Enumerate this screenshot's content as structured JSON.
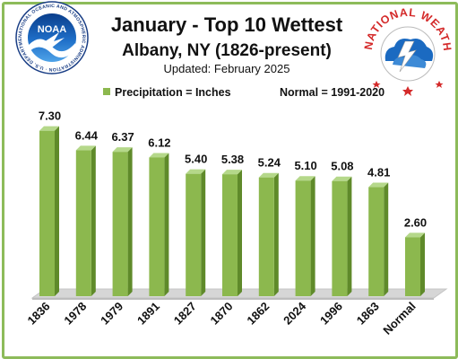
{
  "chart_data": {
    "type": "bar",
    "title": "January - Top 10 Wettest",
    "subtitle": "Albany, NY (1826-present)",
    "updated": "Updated: February 2025",
    "legend": {
      "placement": "top-left",
      "series_label": "Precipitation = Inches",
      "note": "Normal = 1991-2020"
    },
    "categories": [
      "1836",
      "1978",
      "1979",
      "1891",
      "1827",
      "1870",
      "1862",
      "2024",
      "1996",
      "1863",
      "Normal"
    ],
    "values": [
      7.3,
      6.44,
      6.37,
      6.12,
      5.4,
      5.38,
      5.24,
      5.1,
      5.08,
      4.81,
      2.6
    ],
    "value_labels": [
      "7.30",
      "6.44",
      "6.37",
      "6.12",
      "5.40",
      "5.38",
      "5.24",
      "5.10",
      "5.08",
      "4.81",
      "2.60"
    ],
    "ylim": [
      0,
      8
    ],
    "grid": false,
    "colors": {
      "bar": "#8cb84e",
      "bar_side": "#5f8a2a",
      "bar_top": "#b5d88a",
      "floor": "#d6d6d6",
      "border": "#8dbb5a"
    }
  },
  "logos": {
    "noaa": {
      "center_text": "NOAA",
      "ring_text": "NATIONAL OCEANIC AND ATMOSPHERIC ADMINISTRATION · U.S. DEPARTMENT OF COMMERCE"
    },
    "nws": {
      "ring_text": "NATIONAL WEATHER SERVICE"
    }
  }
}
